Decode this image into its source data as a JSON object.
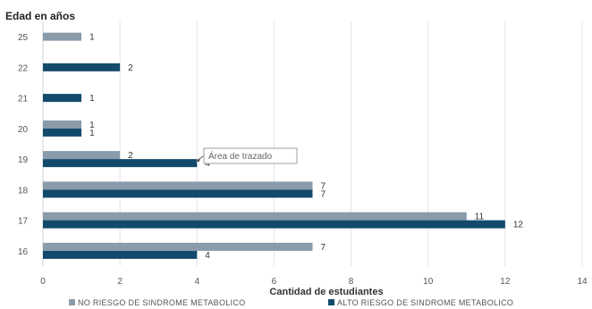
{
  "chart_data": {
    "type": "bar",
    "orientation": "horizontal",
    "title": "",
    "ylabel": "Edad en años",
    "xlabel": "Cantidad de estudiantes",
    "categories": [
      "25",
      "22",
      "21",
      "20",
      "19",
      "18",
      "17",
      "16"
    ],
    "series": [
      {
        "name": "NO RIESGO DE SINDROME METABOLICO",
        "color": "#8a9baa",
        "values": [
          1,
          null,
          null,
          1,
          2,
          7,
          11,
          7
        ]
      },
      {
        "name": "ALTO RIESGO DE SINDROME METABOLICO",
        "color": "#134a6b",
        "values": [
          null,
          2,
          1,
          1,
          4,
          7,
          12,
          4
        ]
      }
    ],
    "xlim": [
      0,
      14
    ],
    "xticks": [
      "0",
      "2",
      "4",
      "6",
      "8",
      "10",
      "12",
      "14"
    ],
    "grid": "vertical",
    "legend": "bottom",
    "annotation": {
      "text": "Área de trazado"
    }
  }
}
